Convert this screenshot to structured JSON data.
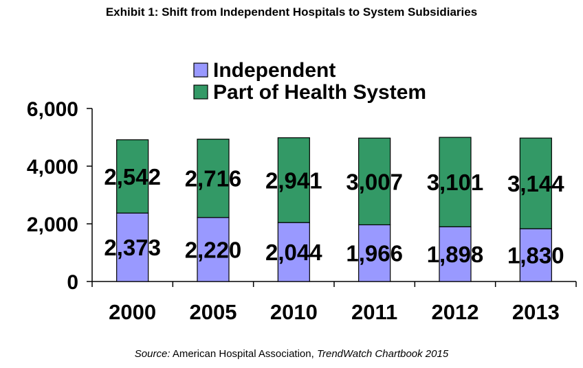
{
  "title": "Exhibit 1: Shift from Independent Hospitals to System Subsidiaries",
  "source": {
    "prefix": "Source:",
    "org": "American Hospital Association,",
    "publication": "TrendWatch Chartbook 2015"
  },
  "colors": {
    "independent": "#9999ff",
    "system": "#339966"
  },
  "chart_data": {
    "type": "bar",
    "stacked": true,
    "categories": [
      "2000",
      "2005",
      "2010",
      "2011",
      "2012",
      "2013"
    ],
    "series": [
      {
        "name": "Independent",
        "values": [
          2373,
          2220,
          2044,
          1966,
          1898,
          1830
        ],
        "labels": [
          "2,373",
          "2,220",
          "2,044",
          "1,966",
          "1,898",
          "1,830"
        ]
      },
      {
        "name": "Part of Health System",
        "values": [
          2542,
          2716,
          2941,
          3007,
          3101,
          3144
        ],
        "labels": [
          "2,542",
          "2,716",
          "2,941",
          "3,007",
          "3,101",
          "3,144"
        ]
      }
    ],
    "ylim": [
      0,
      6000
    ],
    "yticks": [
      0,
      2000,
      4000,
      6000
    ],
    "ytick_labels": [
      "0",
      "2,000",
      "4,000",
      "6,000"
    ],
    "legend_position": "top-center",
    "grid": false
  }
}
